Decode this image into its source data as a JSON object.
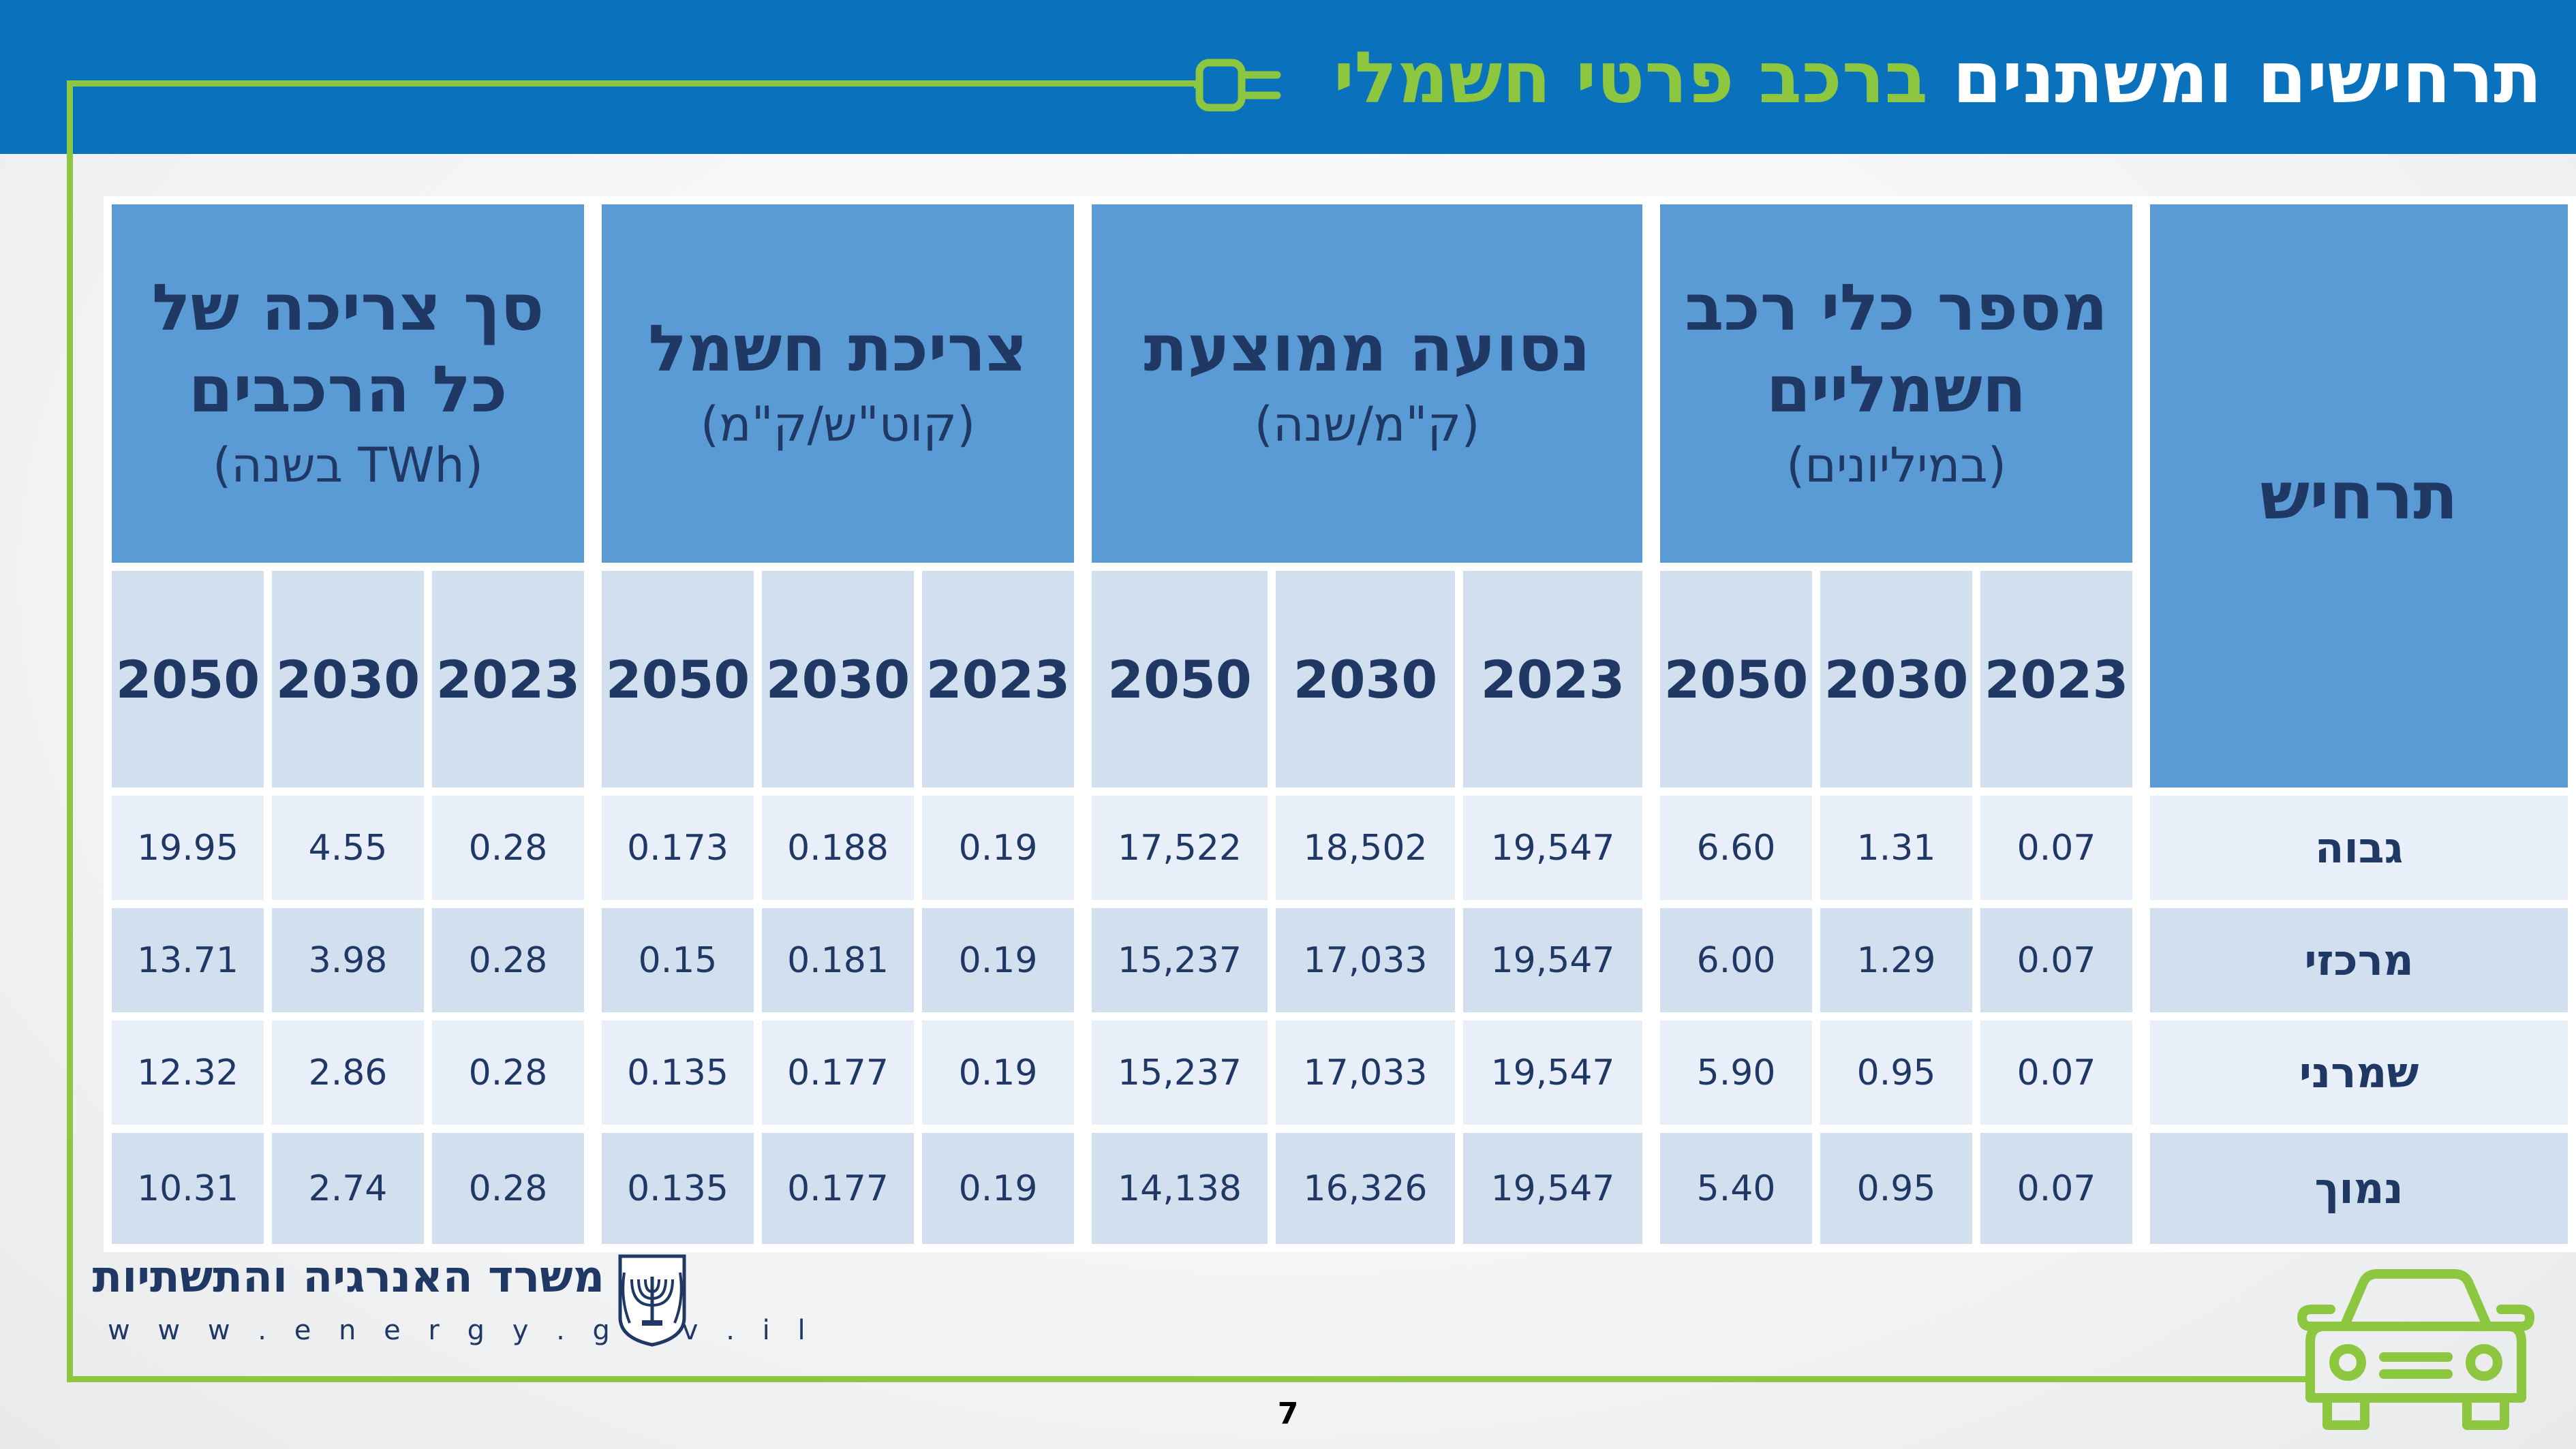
{
  "header": {
    "title_main": "תרחישים ומשתנים",
    "title_accent": "ברכב פרטי חשמלי"
  },
  "table": {
    "corner_label": "תרחיש",
    "groups": [
      {
        "title": "מספר כלי רכב חשמליים",
        "unit": "(במיליונים)"
      },
      {
        "title": "נסועה ממוצעת",
        "unit": "(ק\"מ/שנה)"
      },
      {
        "title": "צריכת חשמל",
        "unit": "(קוט\"ש/ק\"מ)"
      },
      {
        "title": "סך צריכה של כל הרכבים",
        "unit": "(TWh בשנה)"
      }
    ],
    "years": [
      "2023",
      "2030",
      "2050"
    ],
    "rows": [
      {
        "name": "גבוה",
        "values": [
          [
            "0.07",
            "1.31",
            "6.60"
          ],
          [
            "19,547",
            "18,502",
            "17,522"
          ],
          [
            "0.19",
            "0.188",
            "0.173"
          ],
          [
            "0.28",
            "4.55",
            "19.95"
          ]
        ]
      },
      {
        "name": "מרכזי",
        "values": [
          [
            "0.07",
            "1.29",
            "6.00"
          ],
          [
            "19,547",
            "17,033",
            "15,237"
          ],
          [
            "0.19",
            "0.181",
            "0.15"
          ],
          [
            "0.28",
            "3.98",
            "13.71"
          ]
        ]
      },
      {
        "name": "שמרני",
        "values": [
          [
            "0.07",
            "0.95",
            "5.90"
          ],
          [
            "19,547",
            "17,033",
            "15,237"
          ],
          [
            "0.19",
            "0.177",
            "0.135"
          ],
          [
            "0.28",
            "2.86",
            "12.32"
          ]
        ]
      },
      {
        "name": "נמוך",
        "values": [
          [
            "0.07",
            "0.95",
            "5.40"
          ],
          [
            "19,547",
            "16,326",
            "14,138"
          ],
          [
            "0.19",
            "0.177",
            "0.135"
          ],
          [
            "0.28",
            "2.74",
            "10.31"
          ]
        ]
      }
    ]
  },
  "footer": {
    "ministry": "משרד האנרגיה והתשתיות",
    "url": "w w w . e n e r g y . g o v . i l",
    "page_number": "7"
  },
  "icons": {
    "plug": "plug-icon",
    "car": "electric-car-icon",
    "emblem": "state-emblem-icon"
  },
  "colors": {
    "header_blue": "#0a72bd",
    "accent_green": "#8dc63f",
    "group_header": "#5b9bd5",
    "light_cell": "#e9eff8",
    "mid_cell": "#d1dfee",
    "text_navy": "#1f3864"
  }
}
